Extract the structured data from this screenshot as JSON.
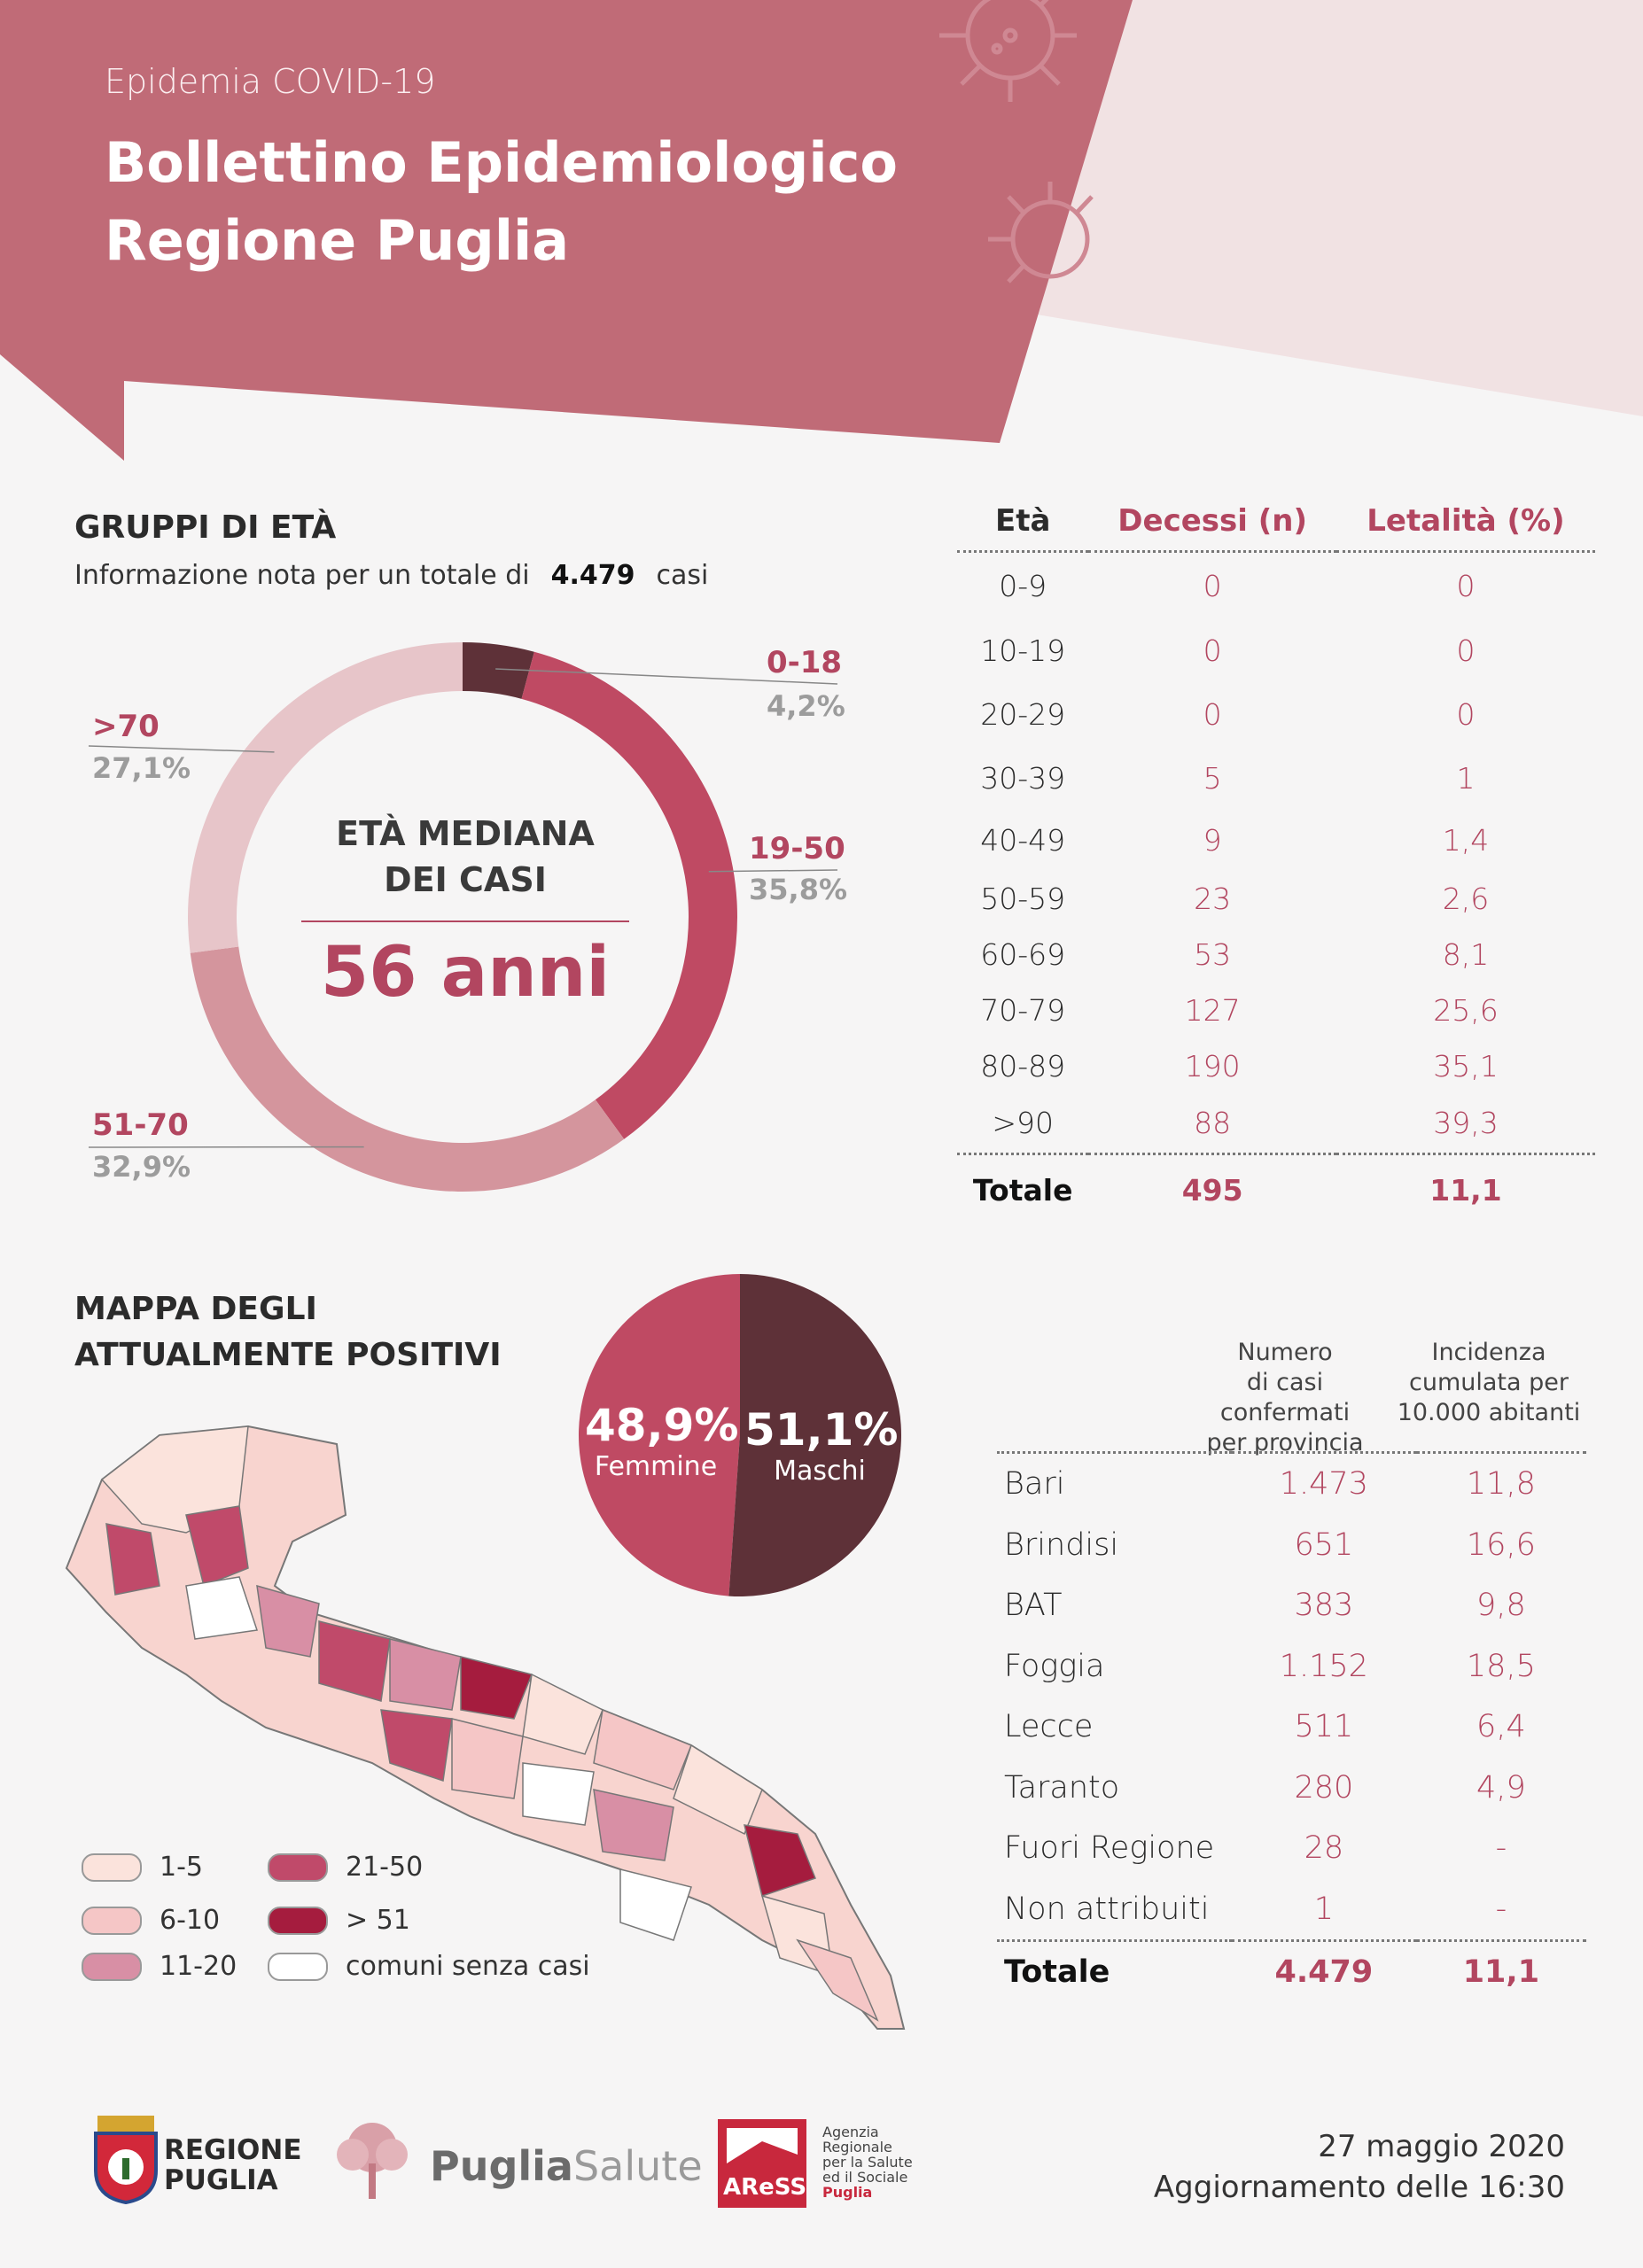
{
  "header": {
    "supertitle": "Epidemia COVID-19",
    "title_line1": "Bollettino Epidemiologico",
    "title_line2": "Regione Puglia"
  },
  "age_groups": {
    "title": "GRUPPI DI ETÀ",
    "info_prefix": "Informazione nota per un totale di",
    "info_total": "4.479",
    "info_suffix": "casi",
    "median_label_line1": "ETÀ MEDIANA",
    "median_label_line2": "DEI CASI",
    "median_value": "56 anni",
    "segments": [
      {
        "label": "0-18",
        "pct": "4,2%",
        "value": 4.2,
        "color": "#5e3138"
      },
      {
        "label": "19-50",
        "pct": "35,8%",
        "value": 35.8,
        "color": "#bf4a63"
      },
      {
        "label": "51-70",
        "pct": "32,9%",
        "value": 32.9,
        "color": "#d4959d"
      },
      {
        "label": ">70",
        "pct": "27,1%",
        "value": 27.1,
        "color": "#e7c5c9"
      }
    ]
  },
  "mortality_table": {
    "headers": [
      "Età",
      "Decessi (n)",
      "Letalità (%)"
    ],
    "rows": [
      [
        "0-9",
        "0",
        "0"
      ],
      [
        "10-19",
        "0",
        "0"
      ],
      [
        "20-29",
        "0",
        "0"
      ],
      [
        "30-39",
        "5",
        "1"
      ],
      [
        "40-49",
        "9",
        "1,4"
      ],
      [
        "50-59",
        "23",
        "2,6"
      ],
      [
        "60-69",
        "53",
        "8,1"
      ],
      [
        "70-79",
        "127",
        "25,6"
      ],
      [
        "80-89",
        "190",
        "35,1"
      ],
      [
        ">90",
        "88",
        "39,3"
      ]
    ],
    "total": [
      "Totale",
      "495",
      "11,1"
    ]
  },
  "map_section": {
    "title_line1": "MAPPA DEGLI",
    "title_line2": "ATTUALMENTE POSITIVI",
    "legend": [
      {
        "label": "1-5",
        "color": "#fbe3dc"
      },
      {
        "label": "6-10",
        "color": "#f5c6c6"
      },
      {
        "label": "11-20",
        "color": "#d88fa5"
      },
      {
        "label": "21-50",
        "color": "#c04a6a"
      },
      {
        "label": "> 51",
        "color": "#a51c3e"
      },
      {
        "label": "comuni senza casi",
        "color": "#ffffff"
      }
    ]
  },
  "gender": {
    "female_pct": "48,9%",
    "female_label": "Femmine",
    "female_value": 48.9,
    "male_pct": "51,1%",
    "male_label": "Maschi",
    "male_value": 51.1,
    "female_color": "#bf4a63",
    "male_color": "#5e3138"
  },
  "province_table": {
    "header_cases": [
      "Numero",
      "di casi confermati",
      "per provincia"
    ],
    "header_incidence": [
      "Incidenza",
      "cumulata per",
      "10.000 abitanti"
    ],
    "rows": [
      [
        "Bari",
        "1.473",
        "11,8"
      ],
      [
        "Brindisi",
        "651",
        "16,6"
      ],
      [
        "BAT",
        "383",
        "9,8"
      ],
      [
        "Foggia",
        "1.152",
        "18,5"
      ],
      [
        "Lecce",
        "511",
        "6,4"
      ],
      [
        "Taranto",
        "280",
        "4,9"
      ],
      [
        "Fuori Regione",
        "28",
        "-"
      ],
      [
        "Non attribuiti",
        "1",
        "-"
      ]
    ],
    "total": [
      "Totale",
      "4.479",
      "11,1"
    ]
  },
  "footer": {
    "logo1_line1": "REGIONE",
    "logo1_line2": "PUGLIA",
    "logo2_part1": "Puglia",
    "logo2_part2": "Salute",
    "logo3_mark": "AReSS",
    "logo3_lines": [
      "Agenzia",
      "Regionale",
      "per la Salute",
      "ed il Sociale",
      "Puglia"
    ],
    "date": "27 maggio 2020",
    "update": "Aggiornamento delle 16:30"
  },
  "colors": {
    "accent": "#b24660",
    "banner": "#c06b77",
    "banner_light": "#f1e1e2"
  }
}
